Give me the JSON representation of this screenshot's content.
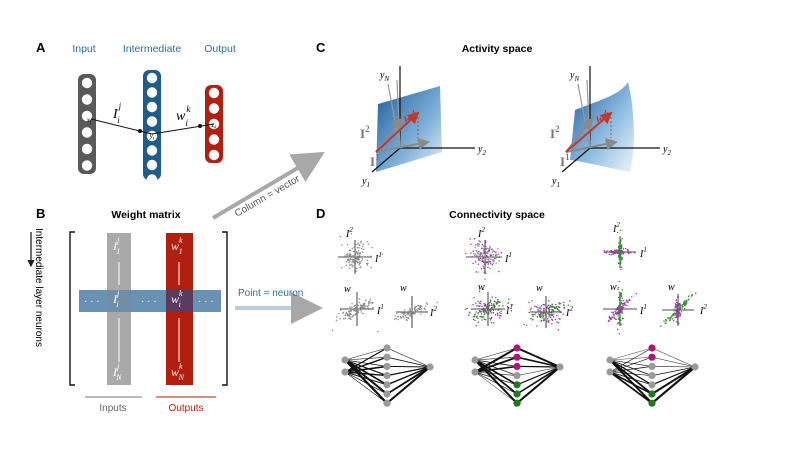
{
  "colors": {
    "input_layer": "#595959",
    "intermediate_layer": "#1f5c8a",
    "output_layer": "#b21f0f",
    "layer_label_blue": "#2e6da4",
    "arrow_grey": "#a8a8a8",
    "arrow_lightblue": "#b8cfe0",
    "purple": "#9c3fa3",
    "green": "#2e8b2e",
    "magenta": "#b01575",
    "dark_green": "#1f7a1f"
  },
  "panel_A": {
    "letter": "A",
    "input_label": "Input",
    "intermediate_label": "Intermediate",
    "output_label": "Output",
    "input_node_label": "x",
    "input_node_sub": "j",
    "intermediate_node_label": "y",
    "intermediate_node_sub": "i",
    "output_node_label": "z",
    "output_node_sub": "k",
    "weight_in": "I",
    "weight_in_sup": "j",
    "weight_in_sub": "i",
    "weight_out": "w",
    "weight_out_sup": "k",
    "weight_out_sub": "i"
  },
  "panel_B": {
    "letter": "B",
    "title": "Weight matrix",
    "row_axis_label": "Intermediate layer neurons",
    "col_in_top": "I",
    "col_in_top_sup": "j",
    "col_in_top_sub": "1",
    "col_in_mid_sub": "i",
    "col_in_bot_sub": "N",
    "col_out_top": "w",
    "col_out_top_sup": "k",
    "col_out_top_sub": "1",
    "col_out_mid_sub": "i",
    "col_out_bot_sub": "N",
    "ellipsis": "· · ·",
    "inputs_label": "Inputs",
    "outputs_label": "Outputs"
  },
  "arrows": {
    "column_vector": "Column = vector",
    "point_neuron": "Point = neuron"
  },
  "panel_C": {
    "letter": "C",
    "title": "Activity space",
    "axis_yN": "y",
    "axis_yN_sub": "N",
    "axis_y1": "y",
    "axis_y1_sub": "1",
    "axis_y2": "y",
    "axis_y2_sub": "2",
    "vec_I1": "I",
    "vec_I1_sup": "1",
    "vec_I2": "I",
    "vec_I2_sup": "2",
    "vec_w": "w",
    "vec_w_sup": "k"
  },
  "panel_D": {
    "letter": "D",
    "title": "Connectivity space",
    "axis_I1": "I",
    "axis_I1_sup": "1",
    "axis_I2": "I",
    "axis_I2_sup": "2",
    "axis_w": "w"
  }
}
